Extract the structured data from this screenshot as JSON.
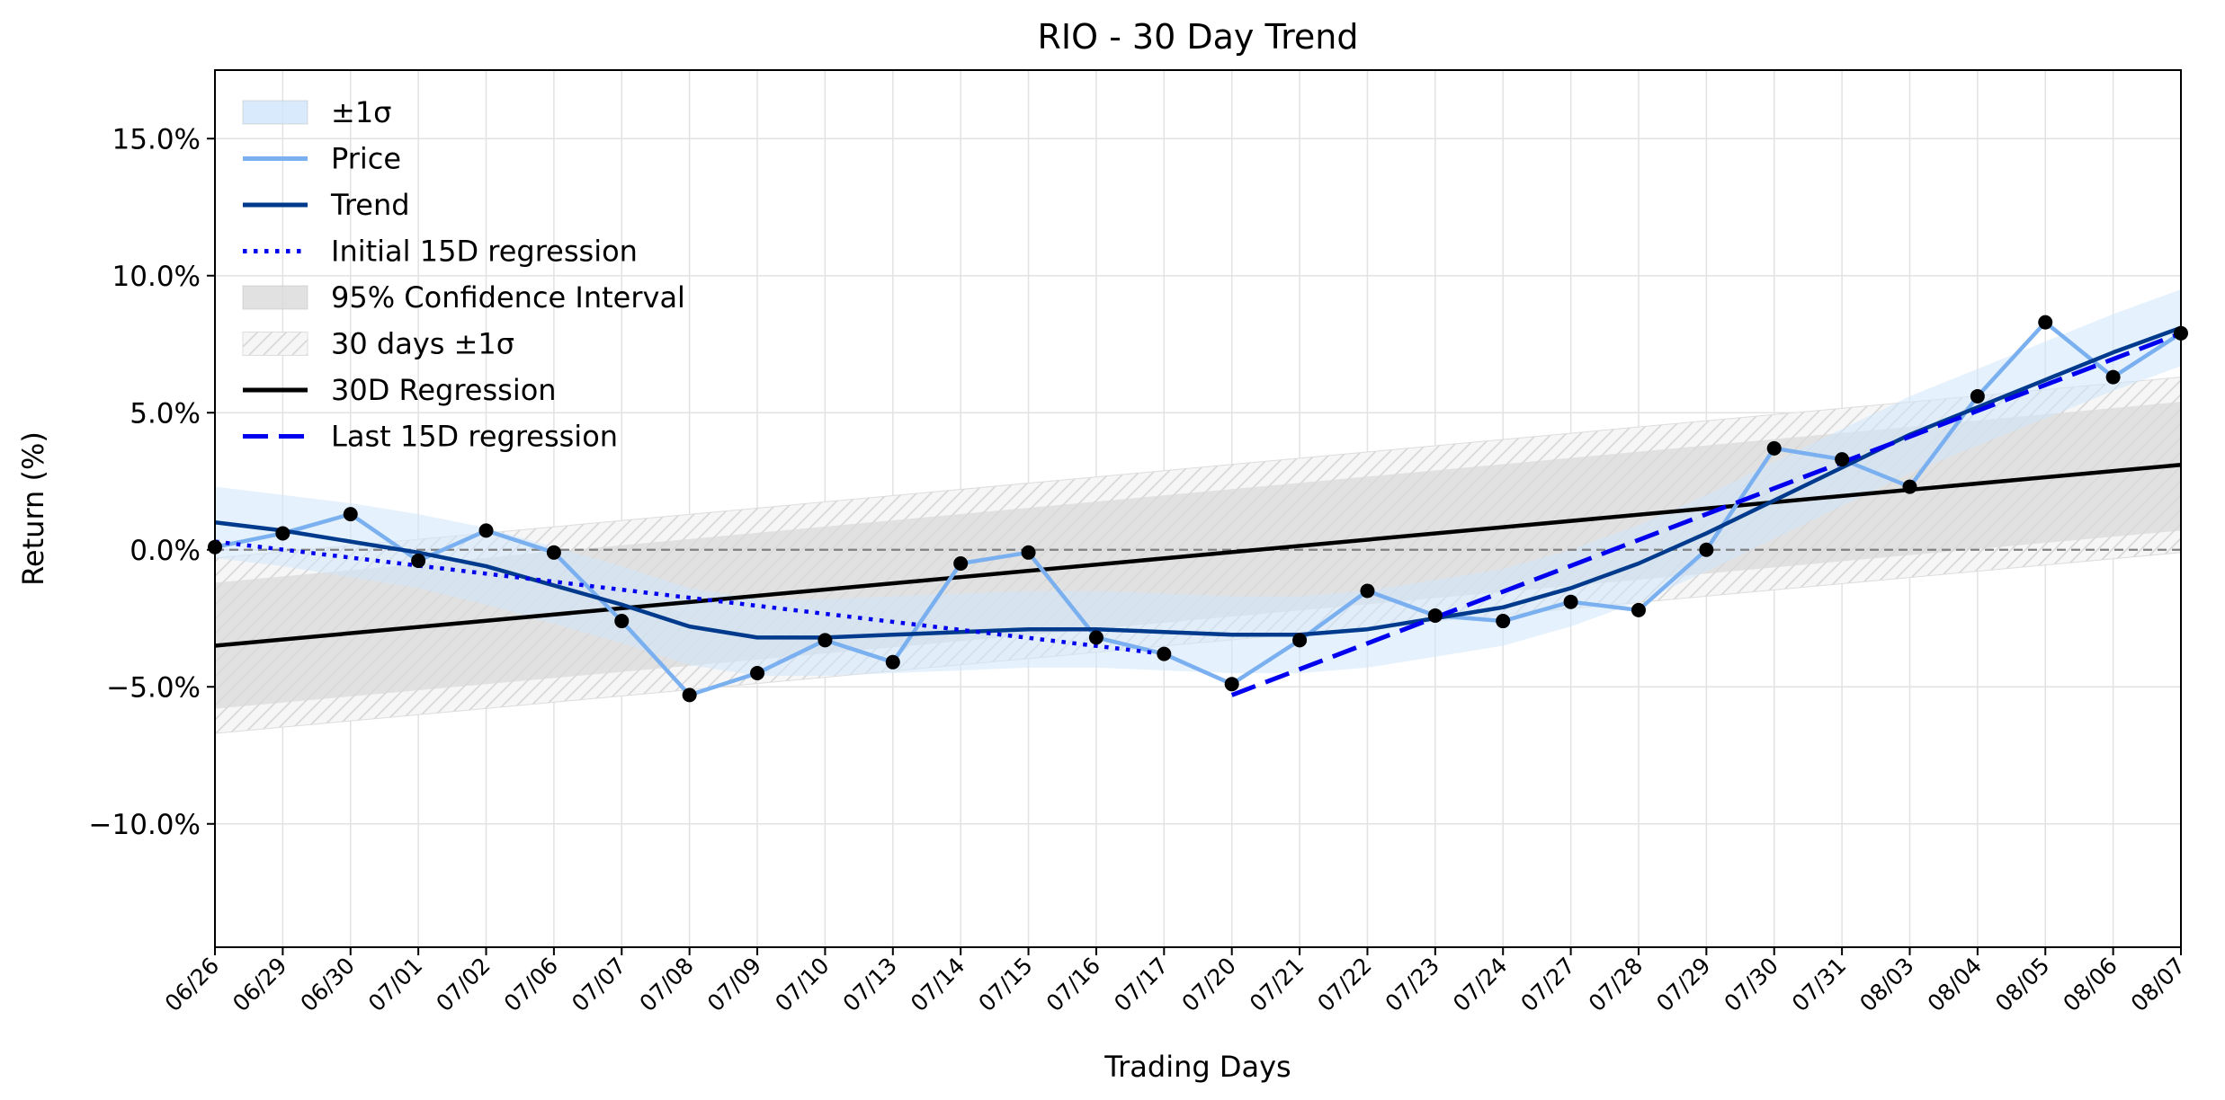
{
  "chart_data": {
    "type": "line",
    "title": "RIO - 30 Day Trend",
    "xlabel": "Trading Days",
    "ylabel": "Return (%)",
    "ylim": [
      -14.5,
      17.5
    ],
    "y_ticks": [
      -10,
      -5,
      0,
      5,
      10,
      15
    ],
    "y_tick_labels": [
      "−10.0%",
      "−5.0%",
      "0.0%",
      "5.0%",
      "10.0%",
      "15.0%"
    ],
    "grid": true,
    "legend_position": "top-left",
    "categories": [
      "06/26",
      "06/29",
      "06/30",
      "07/01",
      "07/02",
      "07/06",
      "07/07",
      "07/08",
      "07/09",
      "07/10",
      "07/13",
      "07/14",
      "07/15",
      "07/16",
      "07/17",
      "07/20",
      "07/21",
      "07/22",
      "07/23",
      "07/24",
      "07/27",
      "07/28",
      "07/29",
      "07/30",
      "07/31",
      "08/03",
      "08/04",
      "08/05",
      "08/06",
      "08/07"
    ],
    "series": [
      {
        "name": "Price",
        "color": "#7ab0f0",
        "marker_color": "#000000",
        "values": [
          0.1,
          0.6,
          1.3,
          -0.4,
          0.7,
          -0.1,
          -2.6,
          -5.3,
          -4.5,
          -3.3,
          -4.1,
          -0.5,
          -0.1,
          -3.2,
          -3.8,
          -4.9,
          -3.3,
          -1.5,
          -2.4,
          -2.6,
          -1.9,
          -2.2,
          0.0,
          3.7,
          3.3,
          2.3,
          5.6,
          8.3,
          6.3,
          7.9
        ]
      },
      {
        "name": "Trend",
        "color": "#003a8c",
        "values": [
          1.0,
          0.7,
          0.3,
          -0.1,
          -0.6,
          -1.3,
          -2.0,
          -2.8,
          -3.2,
          -3.2,
          -3.1,
          -3.0,
          -2.9,
          -2.9,
          -3.0,
          -3.1,
          -3.1,
          -2.9,
          -2.5,
          -2.1,
          -1.4,
          -0.5,
          0.6,
          1.8,
          3.0,
          4.2,
          5.2,
          6.2,
          7.2,
          8.1
        ]
      },
      {
        "name": "Initial 15D regression",
        "color": "#0000ee",
        "style": "dotted",
        "x_range": [
          "06/26",
          "07/17"
        ],
        "start": 0.3,
        "end": -3.8
      },
      {
        "name": "30D Regression",
        "color": "#000000",
        "style": "solid",
        "x_range": [
          "06/26",
          "08/07"
        ],
        "start": -3.5,
        "end": 3.1
      },
      {
        "name": "Last 15D regression",
        "color": "#0000ee",
        "style": "dashed",
        "x_range": [
          "07/20",
          "08/07"
        ],
        "start": -5.3,
        "end": 7.9
      }
    ],
    "bands": [
      {
        "name": "±1σ",
        "color": "#cfe5fb",
        "upper": [
          2.3,
          2.0,
          1.7,
          1.3,
          0.8,
          0.1,
          -0.6,
          -1.4,
          -1.8,
          -1.8,
          -1.7,
          -1.6,
          -1.5,
          -1.5,
          -1.6,
          -1.7,
          -1.7,
          -1.5,
          -1.1,
          -0.7,
          0.0,
          0.9,
          2.0,
          3.2,
          4.4,
          5.6,
          6.6,
          7.6,
          8.6,
          9.5
        ],
        "lower": [
          -0.3,
          -0.6,
          -1.0,
          -1.4,
          -2.0,
          -2.7,
          -3.4,
          -4.2,
          -4.6,
          -4.6,
          -4.5,
          -4.4,
          -4.3,
          -4.3,
          -4.4,
          -4.5,
          -4.5,
          -4.3,
          -3.9,
          -3.5,
          -2.8,
          -1.9,
          -0.8,
          0.4,
          1.6,
          2.8,
          3.8,
          4.8,
          5.8,
          6.7
        ]
      },
      {
        "name": "95% Confidence Interval",
        "color": "#d9d9d9",
        "upper_start": -1.2,
        "upper_end": 5.4,
        "lower_start": -5.8,
        "lower_end": 0.7
      },
      {
        "name": "30 days ±1σ",
        "color": "#eeeeee",
        "hatch": true,
        "upper_start": -0.3,
        "upper_end": 6.3,
        "lower_start": -6.7,
        "lower_end": -0.1
      }
    ],
    "reference_line": {
      "y": 0,
      "color": "#808080",
      "style": "dashed"
    }
  },
  "legend": {
    "items": [
      {
        "label": "±1σ",
        "kind": "patch",
        "color": "#cfe5fb"
      },
      {
        "label": "Price",
        "kind": "line",
        "color": "#7ab0f0",
        "style": "solid"
      },
      {
        "label": "Trend",
        "kind": "line",
        "color": "#003a8c",
        "style": "solid"
      },
      {
        "label": "Initial 15D regression",
        "kind": "line",
        "color": "#0000ee",
        "style": "dotted"
      },
      {
        "label": "95% Confidence Interval",
        "kind": "patch",
        "color": "#d9d9d9"
      },
      {
        "label": "30 days ±1σ",
        "kind": "hatch",
        "color": "#eeeeee"
      },
      {
        "label": "30D Regression",
        "kind": "line",
        "color": "#000000",
        "style": "solid"
      },
      {
        "label": "Last 15D regression",
        "kind": "line",
        "color": "#0000ee",
        "style": "dashed"
      }
    ]
  }
}
